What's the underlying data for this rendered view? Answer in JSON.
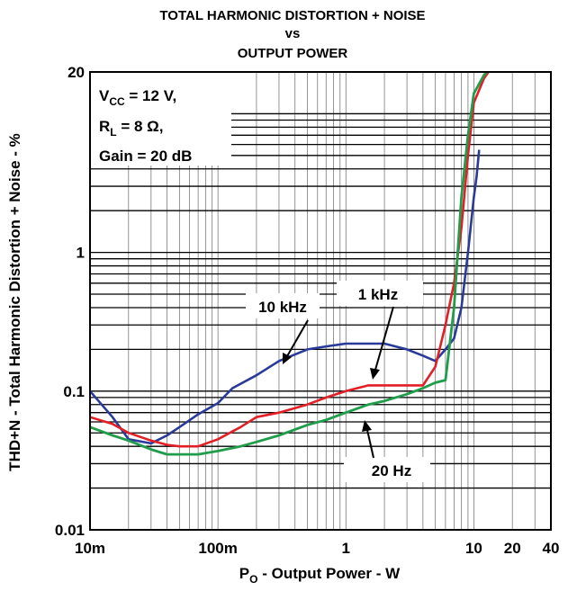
{
  "chart_data": {
    "type": "line",
    "title_lines": [
      "TOTAL HARMONIC DISTORTION + NOISE",
      "vs",
      "OUTPUT POWER"
    ],
    "xlabel": {
      "main": "P",
      "sub": "O",
      "rest": " - Output Power - W"
    },
    "ylabel": "THD+N - Total Harmonic Distortion + Noise - %",
    "x_scale": "log",
    "y_scale": "log",
    "xlim": [
      0.01,
      40
    ],
    "ylim": [
      0.01,
      20
    ],
    "grid": true,
    "x_ticks": [
      {
        "value": 0.01,
        "label": "10m"
      },
      {
        "value": 0.1,
        "label": "100m"
      },
      {
        "value": 1,
        "label": "1"
      },
      {
        "value": 10,
        "label": "10"
      },
      {
        "value": 20,
        "label": "20"
      },
      {
        "value": 40,
        "label": "40"
      }
    ],
    "y_ticks": [
      {
        "value": 0.01,
        "label": "0.01"
      },
      {
        "value": 0.1,
        "label": "0.1"
      },
      {
        "value": 1,
        "label": "1"
      },
      {
        "value": 20,
        "label": "20"
      }
    ],
    "conditions": [
      {
        "pre": "V",
        "sub": "CC",
        "post": " = 12 V,"
      },
      {
        "pre": "R",
        "sub": "L",
        "post": " = 8 Ω,"
      },
      {
        "pre": "Gain = 20 dB",
        "sub": "",
        "post": ""
      }
    ],
    "series": [
      {
        "name": "10 kHz",
        "color": "#2a3a9a",
        "x": [
          0.01,
          0.015,
          0.02,
          0.03,
          0.04,
          0.05,
          0.07,
          0.1,
          0.13,
          0.2,
          0.3,
          0.5,
          0.7,
          1.0,
          1.5,
          2.0,
          3.0,
          4.0,
          5.0,
          6.0,
          7.0,
          8.0,
          9.0,
          10.0,
          10.5,
          11.0
        ],
        "y": [
          0.1,
          0.065,
          0.045,
          0.042,
          0.048,
          0.055,
          0.068,
          0.082,
          0.105,
          0.13,
          0.165,
          0.2,
          0.21,
          0.22,
          0.22,
          0.22,
          0.2,
          0.18,
          0.165,
          0.2,
          0.24,
          0.4,
          1.0,
          2.5,
          3.5,
          5.5
        ]
      },
      {
        "name": "1 kHz",
        "color": "#e21f26",
        "x": [
          0.01,
          0.015,
          0.02,
          0.03,
          0.04,
          0.05,
          0.07,
          0.1,
          0.15,
          0.2,
          0.3,
          0.5,
          0.7,
          1.0,
          1.5,
          2.0,
          3.0,
          4.0,
          5.0,
          6.0,
          7.0,
          8.0,
          9.0,
          10.0,
          12.0,
          14.0
        ],
        "y": [
          0.065,
          0.058,
          0.05,
          0.044,
          0.041,
          0.04,
          0.04,
          0.045,
          0.055,
          0.065,
          0.07,
          0.08,
          0.09,
          0.1,
          0.11,
          0.11,
          0.11,
          0.11,
          0.15,
          0.3,
          0.6,
          1.5,
          5.0,
          12.0,
          18.0,
          22.0
        ]
      },
      {
        "name": "20 Hz",
        "color": "#1f9d4a",
        "x": [
          0.01,
          0.015,
          0.02,
          0.03,
          0.04,
          0.05,
          0.07,
          0.1,
          0.15,
          0.2,
          0.3,
          0.5,
          0.7,
          1.0,
          1.5,
          2.0,
          3.0,
          4.0,
          5.0,
          6.0,
          7.0,
          8.0,
          9.0,
          10.0,
          12.0,
          14.0
        ],
        "y": [
          0.055,
          0.048,
          0.044,
          0.038,
          0.035,
          0.035,
          0.035,
          0.037,
          0.04,
          0.043,
          0.048,
          0.057,
          0.062,
          0.07,
          0.08,
          0.085,
          0.095,
          0.105,
          0.115,
          0.12,
          0.4,
          2.5,
          7.0,
          14.0,
          19.0,
          22.0
        ]
      }
    ],
    "annotations": [
      {
        "text": "10 kHz",
        "series": "10 kHz",
        "point": [
          0.32,
          0.165
        ]
      },
      {
        "text": "1 kHz",
        "series": "1 kHz",
        "point": [
          1.25,
          0.105
        ]
      },
      {
        "text": "20 Hz",
        "series": "20 Hz",
        "point": [
          1.2,
          0.075
        ]
      }
    ]
  }
}
